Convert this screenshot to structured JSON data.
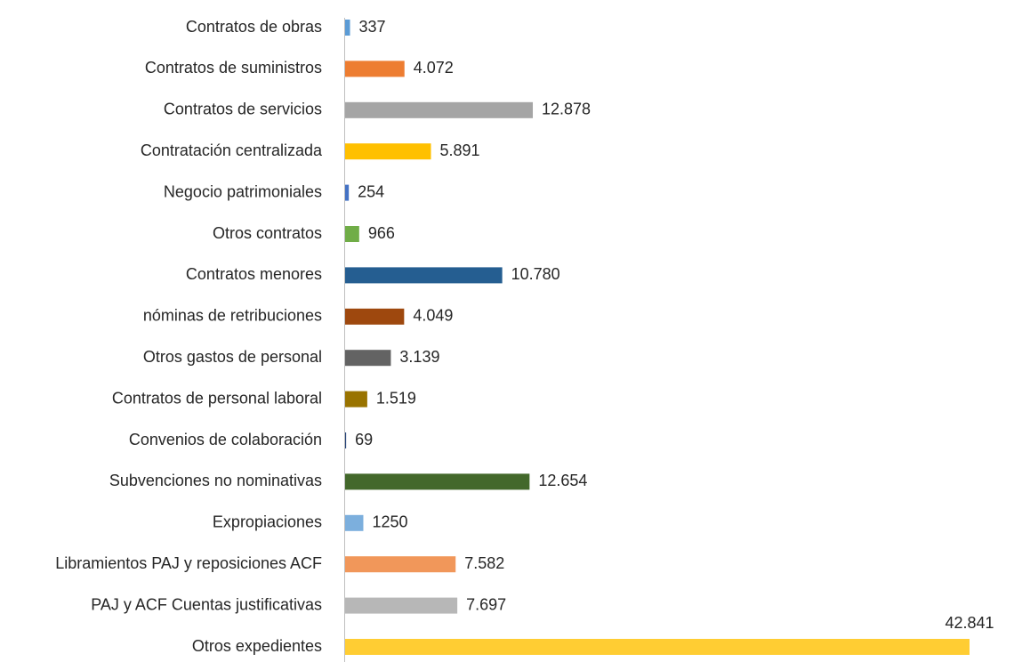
{
  "chart_data": {
    "type": "bar",
    "orientation": "horizontal",
    "categories": [
      "Contratos de obras",
      "Contratos de suministros",
      "Contratos de servicios",
      "Contratación centralizada",
      "Negocio patrimoniales",
      "Otros contratos",
      "Contratos menores",
      "nóminas de retribuciones",
      "Otros gastos de personal",
      "Contratos de personal laboral",
      "Convenios de colaboración ",
      "Subvenciones no nominativas",
      "Expropiaciones",
      "Libramientos PAJ y reposiciones ACF",
      "PAJ y ACF Cuentas justificativas",
      "Otros expedientes"
    ],
    "values": [
      337,
      4072,
      12878,
      5891,
      254,
      966,
      10780,
      4049,
      3139,
      1519,
      69,
      12654,
      1250,
      7582,
      7697,
      42841
    ],
    "value_labels": [
      "337",
      "4.072",
      "12.878",
      "5.891",
      "254",
      "966",
      "10.780",
      "4.049",
      "3.139",
      "1.519",
      "69",
      "12.654",
      "1250",
      "7.582",
      "7.697",
      "42.841"
    ],
    "colors": [
      "#5b9bd5",
      "#ed7d31",
      "#a5a5a5",
      "#ffc000",
      "#4472c4",
      "#70ad47",
      "#255e91",
      "#9e480e",
      "#636363",
      "#997300",
      "#264478",
      "#43682b",
      "#7cafdd",
      "#f1975a",
      "#b7b7b7",
      "#ffcd33"
    ]
  }
}
